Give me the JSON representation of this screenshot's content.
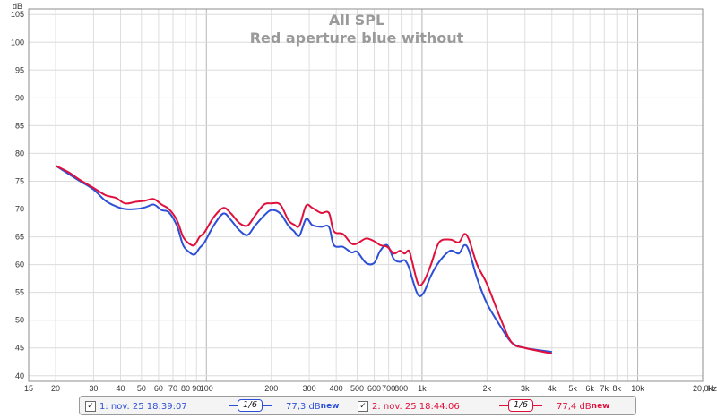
{
  "chart_data": {
    "type": "line",
    "title": "All SPL",
    "subtitle": "Red aperture blue without",
    "ylabel": "dB",
    "xlabel": "Hz",
    "x_scale": "log",
    "xlim": [
      15,
      20000
    ],
    "ylim": [
      39,
      106
    ],
    "grid": true,
    "y_ticks": [
      40,
      45,
      50,
      55,
      60,
      65,
      70,
      75,
      80,
      85,
      90,
      95,
      100,
      105
    ],
    "x_ticks": [
      {
        "v": 15,
        "label": "15"
      },
      {
        "v": 20,
        "label": "20"
      },
      {
        "v": 30,
        "label": "30"
      },
      {
        "v": 40,
        "label": "40"
      },
      {
        "v": 50,
        "label": "50"
      },
      {
        "v": 60,
        "label": "60"
      },
      {
        "v": 70,
        "label": "70"
      },
      {
        "v": 80,
        "label": "80"
      },
      {
        "v": 90,
        "label": "90"
      },
      {
        "v": 100,
        "label": "100"
      },
      {
        "v": 200,
        "label": "200"
      },
      {
        "v": 300,
        "label": "300"
      },
      {
        "v": 400,
        "label": "400"
      },
      {
        "v": 500,
        "label": "500"
      },
      {
        "v": 600,
        "label": "600"
      },
      {
        "v": 700,
        "label": "700"
      },
      {
        "v": 800,
        "label": "800"
      },
      {
        "v": 1000,
        "label": "1k"
      },
      {
        "v": 2000,
        "label": "2k"
      },
      {
        "v": 3000,
        "label": "3k"
      },
      {
        "v": 4000,
        "label": "4k"
      },
      {
        "v": 5000,
        "label": "5k"
      },
      {
        "v": 6000,
        "label": "6k"
      },
      {
        "v": 7000,
        "label": "7k"
      },
      {
        "v": 8000,
        "label": "8k"
      },
      {
        "v": 10000,
        "label": "10k"
      },
      {
        "v": 20000,
        "label": "20,0k"
      }
    ],
    "series": [
      {
        "name": "1: nov. 25 18:39:07",
        "color": "#2d4fd6",
        "x": [
          20,
          23,
          26,
          30,
          34,
          38,
          42,
          47,
          52,
          57,
          62,
          67,
          73,
          78,
          83,
          88,
          93,
          98,
          108,
          120,
          130,
          142,
          155,
          168,
          185,
          200,
          220,
          240,
          255,
          270,
          290,
          310,
          340,
          370,
          390,
          430,
          470,
          500,
          550,
          600,
          640,
          690,
          740,
          790,
          830,
          870,
          900,
          960,
          1020,
          1100,
          1200,
          1350,
          1480,
          1570,
          1650,
          1800,
          2000,
          2300,
          2600,
          3000,
          4000
        ],
        "y": [
          77.8,
          76.3,
          75.0,
          73.5,
          71.5,
          70.5,
          70.0,
          70.0,
          70.3,
          70.8,
          69.8,
          69.4,
          67.0,
          63.5,
          62.3,
          61.8,
          63.0,
          64.0,
          67.0,
          69.2,
          68.0,
          66.2,
          65.3,
          67.0,
          68.8,
          69.8,
          69.2,
          67.0,
          66.0,
          65.2,
          68.2,
          67.1,
          66.8,
          66.8,
          63.5,
          63.2,
          62.2,
          62.3,
          60.3,
          60.3,
          62.5,
          63.5,
          61.0,
          60.5,
          60.8,
          59.5,
          57.5,
          54.5,
          55.0,
          58.0,
          60.5,
          62.5,
          62.0,
          63.5,
          62.5,
          57.5,
          53.0,
          49.0,
          46.0,
          45.0,
          44.3
        ]
      },
      {
        "name": "2: nov. 25 18:44:06",
        "color": "#e0103c",
        "x": [
          20,
          23,
          26,
          30,
          34,
          38,
          42,
          47,
          52,
          57,
          62,
          67,
          73,
          78,
          83,
          88,
          93,
          98,
          108,
          120,
          130,
          142,
          155,
          168,
          185,
          200,
          220,
          240,
          255,
          270,
          290,
          310,
          340,
          370,
          390,
          430,
          470,
          500,
          550,
          600,
          640,
          690,
          740,
          790,
          830,
          870,
          900,
          960,
          1020,
          1100,
          1200,
          1350,
          1480,
          1570,
          1650,
          1800,
          2000,
          2300,
          2600,
          3000,
          4000
        ],
        "y": [
          77.8,
          76.6,
          75.2,
          73.8,
          72.5,
          72.0,
          71.0,
          71.3,
          71.5,
          71.8,
          70.8,
          70.0,
          68.0,
          65.0,
          63.8,
          63.5,
          65.0,
          65.8,
          68.5,
          70.2,
          69.2,
          67.5,
          67.0,
          68.8,
          70.8,
          71.0,
          70.8,
          68.0,
          67.2,
          67.0,
          70.6,
          70.2,
          69.3,
          69.3,
          66.0,
          65.5,
          63.8,
          63.8,
          64.7,
          64.2,
          63.5,
          63.2,
          62.0,
          62.5,
          62.0,
          62.5,
          60.5,
          56.5,
          57.0,
          60.0,
          64.0,
          64.5,
          64.0,
          65.5,
          64.5,
          60.0,
          56.5,
          50.5,
          46.0,
          45.0,
          44.0
        ]
      }
    ]
  },
  "legend": {
    "items": [
      {
        "check": "✓",
        "label": "1: nov. 25 18:39:07",
        "smoothing": "1/6",
        "level": "77,3 dB",
        "sup": "new",
        "color": "#2d4fd6"
      },
      {
        "check": "✓",
        "label": "2: nov. 25 18:44:06",
        "smoothing": "1/6",
        "level": "77,4 dB",
        "sup": "new",
        "color": "#e0103c"
      }
    ]
  }
}
